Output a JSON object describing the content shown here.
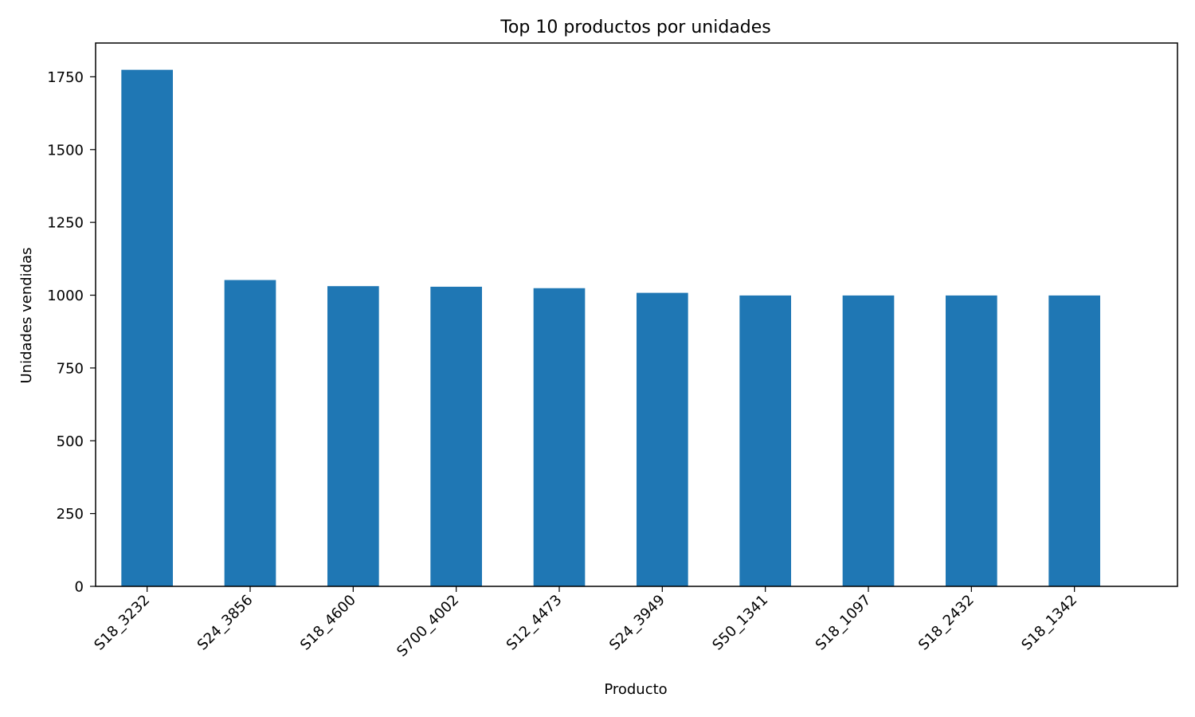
{
  "chart_data": {
    "type": "bar",
    "title": "Top 10 productos por unidades",
    "xlabel": "Producto",
    "ylabel": "Unidades vendidas",
    "categories": [
      "S18_3232",
      "S24_3856",
      "S18_4600",
      "S700_4002",
      "S12_4473",
      "S24_3949",
      "S50_1341",
      "S18_1097",
      "S18_2432",
      "S18_1342"
    ],
    "values": [
      1774,
      1052,
      1031,
      1029,
      1024,
      1008,
      999,
      999,
      999,
      999
    ],
    "ylim": [
      0,
      1866
    ],
    "yticks": [
      0,
      250,
      500,
      750,
      1000,
      1250,
      1500,
      1750
    ],
    "grid": false,
    "bar_color": "#1f77b4"
  }
}
